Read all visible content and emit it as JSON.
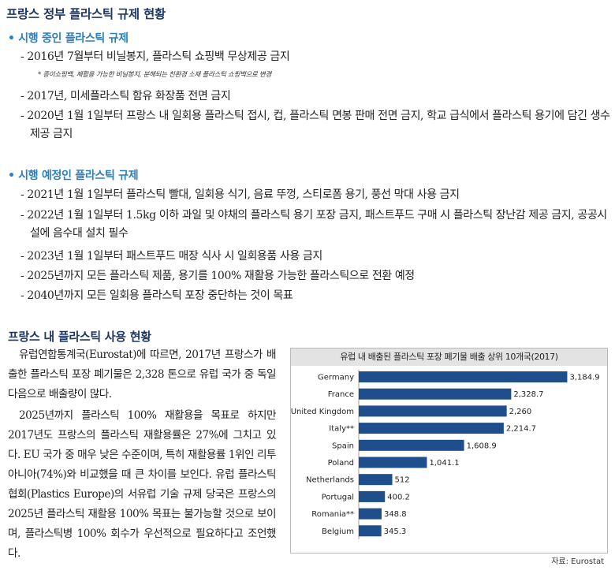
{
  "title": "프랑스 정부 플라스틱 규제 현황",
  "section_current": {
    "heading": "• 시행 중인 플라스틱 규제",
    "items": [
      "- 2016년 7월부터 비닐봉지, 플라스틱 쇼핑백 무상제공 금지",
      "- 2017년, 미세플라스틱 함유 화장품 전면 금지",
      "- 2020년 1월 1일부터 프랑스 내 일회용 플라스틱 접시, 컵, 플라스틱 면봉 판매 전면 금지, 학교 급식에서 플라스틱 용기에 담긴 생수 제공 금지"
    ],
    "note": "* 종이쇼핑백, 재활용 가능한 비닐봉지, 분해되는 친환경 소재 플라스틱 쇼핑백으로 변경"
  },
  "section_planned": {
    "heading": "• 시행 예정인 플라스틱 규제",
    "items": [
      "- 2021년 1월 1일부터 플라스틱 빨대, 일회용 식기, 음료 뚜껑, 스티로폼 용기, 풍선 막대 사용 금지",
      "- 2022년 1월 1일부터 1.5kg 이하 과일 및 야채의 플라스틱 용기 포장 금지, 패스트푸드 구매 시 플라스틱 장난감 제공 금지, 공공시설에 음수대 설치 필수",
      "- 2023년 1월 1일부터 패스트푸드 매장 식사 시 일회용품 사용 금지",
      "- 2025년까지 모든 플라스틱 제품, 용기를 100% 재활용 가능한 플라스틱으로 전환 예정",
      "- 2040년까지 모든 일회용 플라스틱 포장 중단하는 것이 목표"
    ]
  },
  "usage": {
    "heading": "프랑스 내 플라스틱 사용 현황",
    "paragraphs": [
      "유럽연합통계국(Eurostat)에 따르면, 2017년 프랑스가 배출한 플라스틱 포장 폐기물은 2,328 톤으로 유럽 국가 중 독일 다음으로 배출량이 많다.",
      "2025년까지 플라스틱 100% 재활용을 목표로 하지만 2017년도 프랑스의 플라스틱 재활용률은 27%에 그치고 있다. EU 국가 중 매우 낮은 수준이며, 특히 재활용률 1위인 리투아니아(74%)와 비교했을 때 큰 차이를 보인다. 유럽 플라스틱협회(Plastics Europe)의 서유럽 기술 규제 당국은 프랑스의 2025년 플라스틱 재활용 100% 목표는 불가능할 것으로 보이며, 플라스틱병 100% 회수가 우선적으로 필요하다고 조언했다."
    ]
  },
  "chart_data": {
    "type": "bar",
    "orientation": "horizontal",
    "title": "유럽 내 배출된 플라스틱 포장 폐기물 배출 상위 10개국(2017)",
    "categories": [
      "Germany",
      "France",
      "United Kingdom",
      "Italy**",
      "Spain",
      "Poland",
      "Netherlands",
      "Portugal",
      "Romania**",
      "Belgium"
    ],
    "values": [
      3184.9,
      2328.7,
      2260,
      2214.7,
      1608.9,
      1041.1,
      512,
      400.2,
      348.8,
      345.3
    ],
    "value_labels": [
      "3,184.9",
      "2,328.7",
      "2,260",
      "2,214.7",
      "1,608.9",
      "1,041.1",
      "512",
      "400.2",
      "348.8",
      "345.3"
    ],
    "xlim": [
      0,
      3300
    ],
    "grid": false,
    "bar_color": "#1f4e8c"
  },
  "source": "자료: Eurostat"
}
